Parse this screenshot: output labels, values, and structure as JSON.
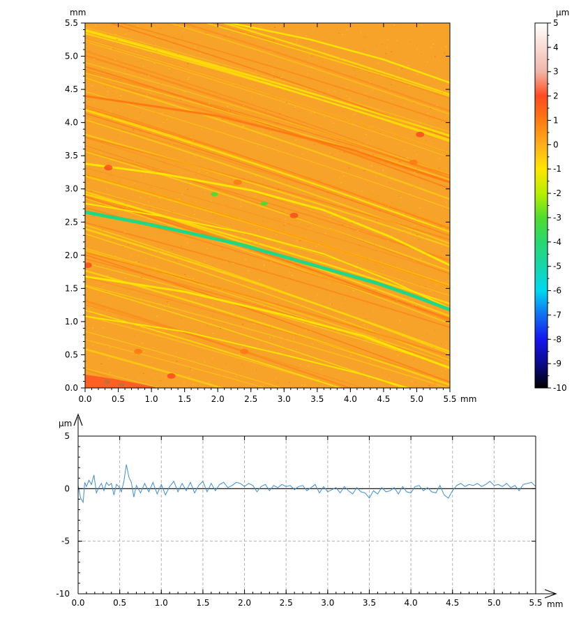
{
  "colors": {
    "surface_base": "#F7A32A",
    "colorbar_stops": [
      {
        "value": 5,
        "color": "#ffffff"
      },
      {
        "value": 3,
        "color": "#f2b6a8"
      },
      {
        "value": 2,
        "color": "#ff4a1f"
      },
      {
        "value": 1,
        "color": "#ff7a12"
      },
      {
        "value": 0,
        "color": "#ffad1c"
      },
      {
        "value": -1,
        "color": "#ffe600"
      },
      {
        "value": -2,
        "color": "#b8ee00"
      },
      {
        "value": -3,
        "color": "#4fdc2e"
      },
      {
        "value": -4,
        "color": "#28d86f"
      },
      {
        "value": -5,
        "color": "#16d6aa"
      },
      {
        "value": -6,
        "color": "#00d8f0"
      },
      {
        "value": -7,
        "color": "#0f6ff2"
      },
      {
        "value": -8,
        "color": "#1515ee"
      },
      {
        "value": -9,
        "color": "#0a0a8c"
      },
      {
        "value": -10,
        "color": "#000000"
      }
    ],
    "profile_line": "#3b8ed6",
    "grid": "#b0b0b0"
  },
  "chart_data": [
    {
      "type": "heatmap",
      "x_unit": "mm",
      "y_unit": "mm",
      "xlim": [
        0,
        5.5
      ],
      "ylim": [
        0,
        5.5
      ],
      "x_ticks": [
        "0.0",
        "0.5",
        "1.0",
        "1.5",
        "2.0",
        "2.5",
        "3.0",
        "3.5",
        "4.0",
        "4.5",
        "5.0",
        "5.5"
      ],
      "y_ticks": [
        "0.0",
        "0.5",
        "1.0",
        "1.5",
        "2.0",
        "2.5",
        "3.0",
        "3.5",
        "4.0",
        "4.5",
        "5.0",
        "5.5"
      ],
      "colorbar": {
        "unit": "µm",
        "range": [
          -10,
          5
        ],
        "ticks": [
          "5",
          "4",
          "3",
          "2",
          "1",
          "0",
          "-1",
          "-2",
          "-3",
          "-4",
          "-5",
          "-6",
          "-7",
          "-8",
          "-9",
          "-10"
        ]
      }
    },
    {
      "type": "line",
      "x_unit": "mm",
      "y_unit": "µm",
      "xlim": [
        0,
        5.5
      ],
      "ylim": [
        -10,
        5
      ],
      "x_ticks": [
        "0.0",
        "0.5",
        "1.0",
        "1.5",
        "2.0",
        "2.5",
        "3.0",
        "3.5",
        "4.0",
        "4.5",
        "5.0",
        "5.5"
      ],
      "y_ticks": [
        "5",
        "0",
        "-5",
        "-10"
      ],
      "grid": true,
      "series": [
        {
          "x": [
            0.0,
            0.03,
            0.06,
            0.08,
            0.1,
            0.13,
            0.16,
            0.19,
            0.22,
            0.25,
            0.28,
            0.31,
            0.34,
            0.37,
            0.4,
            0.43,
            0.46,
            0.49,
            0.52,
            0.55,
            0.58,
            0.61,
            0.64,
            0.67,
            0.7,
            0.75,
            0.8,
            0.85,
            0.9,
            0.95,
            1.0,
            1.05,
            1.1,
            1.15,
            1.2,
            1.25,
            1.3,
            1.35,
            1.4,
            1.45,
            1.5,
            1.55,
            1.6,
            1.65,
            1.7,
            1.75,
            1.8,
            1.85,
            1.9,
            1.95,
            2.0,
            2.05,
            2.1,
            2.15,
            2.2,
            2.25,
            2.3,
            2.35,
            2.4,
            2.45,
            2.5,
            2.55,
            2.6,
            2.65,
            2.7,
            2.75,
            2.8,
            2.85,
            2.9,
            2.95,
            3.0,
            3.05,
            3.1,
            3.15,
            3.2,
            3.25,
            3.3,
            3.35,
            3.4,
            3.45,
            3.5,
            3.55,
            3.6,
            3.65,
            3.7,
            3.75,
            3.8,
            3.85,
            3.9,
            3.95,
            4.0,
            4.05,
            4.1,
            4.15,
            4.2,
            4.25,
            4.3,
            4.35,
            4.4,
            4.45,
            4.5,
            4.55,
            4.6,
            4.65,
            4.7,
            4.75,
            4.8,
            4.85,
            4.9,
            4.95,
            5.0,
            5.05,
            5.1,
            5.15,
            5.2,
            5.25,
            5.3,
            5.35,
            5.4,
            5.45,
            5.5
          ],
          "y": [
            0.3,
            -0.9,
            -1.3,
            0.6,
            0.2,
            0.8,
            0.4,
            1.3,
            -0.4,
            0.1,
            0.5,
            -0.2,
            0.6,
            0.3,
            0.5,
            -0.6,
            0.4,
            0.2,
            -0.3,
            0.7,
            2.3,
            1.1,
            0.6,
            -0.8,
            0.3,
            -0.4,
            0.5,
            -0.3,
            0.6,
            -0.5,
            0.4,
            -0.6,
            0.2,
            0.7,
            -0.3,
            0.5,
            -0.2,
            0.6,
            -0.4,
            0.3,
            0.7,
            -0.3,
            0.5,
            -0.2,
            0.4,
            0.6,
            0.1,
            0.3,
            0.6,
            0.5,
            0.2,
            0.5,
            0.3,
            -0.3,
            0.2,
            0.4,
            -0.2,
            0.3,
            0.1,
            0.4,
            0.2,
            0.3,
            -0.1,
            0.2,
            0.3,
            -0.2,
            0.1,
            0.4,
            -0.4,
            0.2,
            -0.3,
            -0.1,
            0.1,
            -0.4,
            0.2,
            -0.2,
            -0.5,
            0.1,
            -0.3,
            -0.4,
            -0.9,
            -0.2,
            -0.5,
            0.1,
            -0.3,
            -0.2,
            0.1,
            -0.5,
            0.2,
            -0.3,
            -0.4,
            0.2,
            0.3,
            -0.2,
            0.1,
            -0.3,
            -0.4,
            0.3,
            -0.6,
            -0.9,
            -0.2,
            0.3,
            0.5,
            0.2,
            0.4,
            0.3,
            0.5,
            0.2,
            0.4,
            0.7,
            0.3,
            0.4,
            0.2,
            0.5,
            0.1,
            0.3,
            -0.2,
            0.4,
            0.5,
            0.6,
            0.2
          ]
        }
      ]
    }
  ]
}
